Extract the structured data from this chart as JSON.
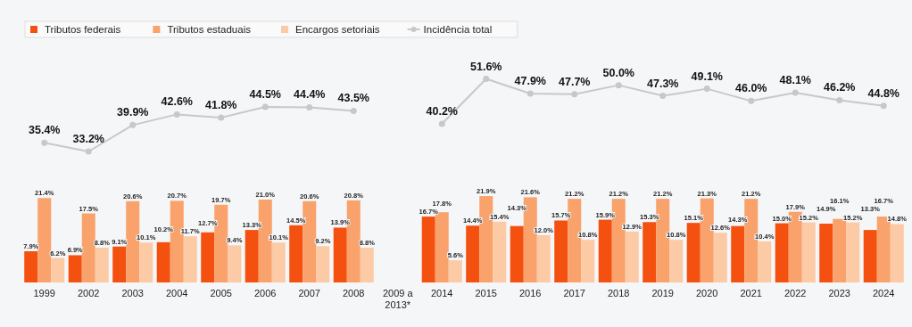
{
  "chart_data": {
    "type": "bar",
    "categories": [
      "1999",
      "2002",
      "2003",
      "2004",
      "2005",
      "2006",
      "2007",
      "2008",
      "2009 a\n2013*",
      "2014",
      "2015",
      "2016",
      "2017",
      "2018",
      "2019",
      "2020",
      "2021",
      "2022",
      "2023",
      "2024"
    ],
    "series": [
      {
        "name": "Tributos federais",
        "color": "#f4500f",
        "values": [
          7.9,
          6.9,
          9.1,
          10.2,
          12.7,
          13.3,
          14.5,
          13.9,
          null,
          16.7,
          14.4,
          14.3,
          15.7,
          15.9,
          15.3,
          15.1,
          14.3,
          15.0,
          14.9,
          13.3
        ],
        "value_labels": [
          "7.9%",
          "6.9%",
          "9.1%",
          "10.2%",
          "12.7%",
          "13.3%",
          "14.5%",
          "13.9%",
          null,
          "16.7%",
          "14.4%",
          "14.3%",
          "15.7%",
          "15.9%",
          "15.3%",
          "15.1%",
          "14.3%",
          "15.0%",
          "14.9%",
          "13.3%"
        ]
      },
      {
        "name": "Tributos estaduais",
        "color": "#f9a26c",
        "values": [
          21.4,
          17.5,
          20.6,
          20.7,
          19.7,
          21.0,
          20.6,
          20.8,
          null,
          17.8,
          21.9,
          21.6,
          21.2,
          21.2,
          21.2,
          21.3,
          21.2,
          17.9,
          16.1,
          16.7
        ],
        "value_labels": [
          "21.4%",
          "17.5%",
          "20.6%",
          "20.7%",
          "19.7%",
          "21.0%",
          "20.6%",
          "20.8%",
          null,
          "17.8%",
          "21.9%",
          "21.6%",
          "21.2%",
          "21.2%",
          "21.2%",
          "21.3%",
          "21.2%",
          "17.9%",
          "16.1%",
          "16.7%"
        ]
      },
      {
        "name": "Encargos setoriais",
        "color": "#fccaa5",
        "values": [
          6.2,
          8.8,
          10.1,
          11.7,
          9.4,
          10.1,
          9.2,
          8.8,
          null,
          5.6,
          15.4,
          12.0,
          10.8,
          12.9,
          10.8,
          12.6,
          10.4,
          15.2,
          15.2,
          14.8
        ],
        "value_labels": [
          "6.2%",
          "8.8%",
          "10.1%",
          "11.7%",
          "9.4%",
          "10.1%",
          "9.2%",
          "8.8%",
          null,
          "5.6%",
          "15.4%",
          "12.0%",
          "10.8%",
          "12.9%",
          "10.8%",
          "12.6%",
          "10.4%",
          "15.2%",
          "15.2%",
          "14.8%"
        ]
      },
      {
        "name": "Incidência total",
        "type": "line",
        "color": "#c8c8c8",
        "values": [
          35.4,
          33.2,
          39.9,
          42.6,
          41.8,
          44.5,
          44.4,
          43.5,
          null,
          40.2,
          51.6,
          47.9,
          47.7,
          50.0,
          47.3,
          49.1,
          46.0,
          48.1,
          46.2,
          44.8
        ],
        "value_labels": [
          "35.4%",
          "33.2%",
          "39.9%",
          "42.6%",
          "41.8%",
          "44.5%",
          "44.4%",
          "43.5%",
          null,
          "40.2%",
          "51.6%",
          "47.9%",
          "47.7%",
          "50.0%",
          "47.3%",
          "49.1%",
          "46.0%",
          "48.1%",
          "46.2%",
          "44.8%"
        ]
      }
    ],
    "tick_labels": "x",
    "legend": "top left",
    "marker": "circle"
  }
}
